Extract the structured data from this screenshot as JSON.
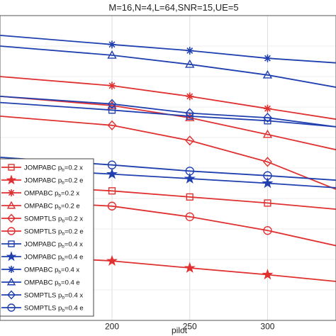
{
  "chart_data": {
    "type": "line",
    "title": "M=16,N=4,L=64,SNR=15,UE=5",
    "xlabel": "pilot",
    "ylabel": "",
    "xticks": [
      200,
      250,
      300
    ],
    "xlim": [
      128,
      344
    ],
    "ylim": [
      0,
      1
    ],
    "grid": true,
    "legend_location": "lower-left",
    "series": [
      {
        "name": "JOMPABC p_b=0.2 x",
        "color": "#e03030",
        "marker": "square",
        "x": [
          128,
          200,
          250,
          300,
          344
        ],
        "y": [
          0.445,
          0.425,
          0.405,
          0.385,
          0.365
        ]
      },
      {
        "name": "JOMPABC p_b=0.2 e",
        "color": "#e03030",
        "marker": "star",
        "x": [
          128,
          200,
          250,
          300,
          344
        ],
        "y": [
          0.215,
          0.195,
          0.172,
          0.15,
          0.128
        ]
      },
      {
        "name": "OMPABC p_b=0.2 x",
        "color": "#e03030",
        "marker": "asterisk",
        "x": [
          128,
          200,
          250,
          300,
          344
        ],
        "y": [
          0.8,
          0.77,
          0.735,
          0.695,
          0.66
        ]
      },
      {
        "name": "OMPABC p_b=0.2 e",
        "color": "#e03030",
        "marker": "triangle",
        "x": [
          128,
          200,
          250,
          300,
          344
        ],
        "y": [
          0.735,
          0.705,
          0.665,
          0.61,
          0.56
        ]
      },
      {
        "name": "SOMPTLS p_b=0.2 x",
        "color": "#e03030",
        "marker": "diamond",
        "x": [
          128,
          200,
          250,
          300,
          344
        ],
        "y": [
          0.67,
          0.64,
          0.59,
          0.52,
          0.43
        ]
      },
      {
        "name": "SOMPTLS p_b=0.2 e",
        "color": "#e03030",
        "marker": "circle",
        "x": [
          128,
          200,
          250,
          300,
          344
        ],
        "y": [
          0.395,
          0.375,
          0.34,
          0.295,
          0.245
        ]
      },
      {
        "name": "JOMPABC p_b=0.4 x",
        "color": "#2040b0",
        "marker": "square",
        "x": [
          128,
          200,
          250,
          300,
          344
        ],
        "y": [
          0.715,
          0.69,
          0.67,
          0.655,
          0.635
        ]
      },
      {
        "name": "JOMPABC p_b=0.4 e",
        "color": "#2040b0",
        "marker": "star",
        "x": [
          128,
          200,
          250,
          300,
          344
        ],
        "y": [
          0.5,
          0.48,
          0.465,
          0.45,
          0.435
        ]
      },
      {
        "name": "OMPABC p_b=0.4 x",
        "color": "#2040b0",
        "marker": "asterisk",
        "x": [
          128,
          200,
          250,
          300,
          344
        ],
        "y": [
          0.935,
          0.905,
          0.885,
          0.86,
          0.845
        ]
      },
      {
        "name": "OMPABC p_b=0.4 e",
        "color": "#2040b0",
        "marker": "triangle",
        "x": [
          128,
          200,
          250,
          300,
          344
        ],
        "y": [
          0.9,
          0.87,
          0.84,
          0.805,
          0.765
        ]
      },
      {
        "name": "SOMPTLS p_b=0.4 x",
        "color": "#2040b0",
        "marker": "diamond",
        "x": [
          128,
          200,
          250,
          300,
          344
        ],
        "y": [
          0.735,
          0.71,
          0.68,
          0.665,
          0.635
        ]
      },
      {
        "name": "SOMPTLS p_b=0.4 e",
        "color": "#2040b0",
        "marker": "circle",
        "x": [
          128,
          200,
          250,
          300,
          344
        ],
        "y": [
          0.535,
          0.51,
          0.49,
          0.475,
          0.46
        ]
      }
    ],
    "legend": [
      {
        "label": "JOMPABC",
        "p": "p",
        "sub": "b",
        "suffix": "=0.2 x"
      },
      {
        "label": "JOMPABC",
        "p": "p",
        "sub": "b",
        "suffix": "=0.2 e"
      },
      {
        "label": "OMPABC",
        "p": "p",
        "sub": "b",
        "suffix": "=0.2 x"
      },
      {
        "label": "OMPABC",
        "p": "p",
        "sub": "b",
        "suffix": "=0.2 e"
      },
      {
        "label": "SOMPTLS",
        "p": "p",
        "sub": "b",
        "suffix": "=0.2 x"
      },
      {
        "label": "SOMPTLS",
        "p": "p",
        "sub": "b",
        "suffix": "=0.2 e"
      },
      {
        "label": "JOMPABC",
        "p": "p",
        "sub": "b",
        "suffix": "=0.4 x"
      },
      {
        "label": "JOMPABC",
        "p": "p",
        "sub": "b",
        "suffix": "=0.4 e"
      },
      {
        "label": "OMPABC",
        "p": "p",
        "sub": "b",
        "suffix": "=0.4 x"
      },
      {
        "label": "OMPABC",
        "p": "p",
        "sub": "b",
        "suffix": "=0.4 e"
      },
      {
        "label": "SOMPTLS",
        "p": "p",
        "sub": "b",
        "suffix": "=0.4 x"
      },
      {
        "label": "SOMPTLS",
        "p": "p",
        "sub": "b",
        "suffix": "=0.4 e"
      }
    ]
  }
}
